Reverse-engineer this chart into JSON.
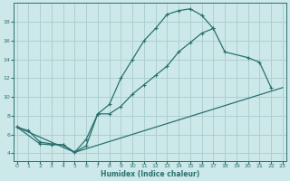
{
  "xlabel": "Humidex (Indice chaleur)",
  "bg_color": "#cde8e8",
  "grid_color": "#a8cccc",
  "line_color": "#2a7070",
  "xlim": [
    -0.3,
    23.3
  ],
  "ylim": [
    3.2,
    20.0
  ],
  "xticks": [
    0,
    1,
    2,
    3,
    4,
    5,
    6,
    7,
    8,
    9,
    10,
    11,
    12,
    13,
    14,
    15,
    16,
    17,
    18,
    19,
    20,
    21,
    22,
    23
  ],
  "yticks": [
    4,
    6,
    8,
    10,
    12,
    14,
    16,
    18
  ],
  "line1_x": [
    0,
    1,
    2,
    3,
    4,
    5,
    6,
    7,
    8,
    9,
    10,
    11,
    12,
    13,
    14,
    15,
    16,
    17,
    18,
    20,
    21,
    22
  ],
  "line1_y": [
    6.8,
    6.4,
    5.2,
    5.0,
    4.9,
    4.1,
    4.8,
    8.2,
    9.2,
    12.0,
    14.0,
    16.0,
    17.3,
    18.8,
    19.2,
    19.4,
    18.7,
    17.3,
    14.8,
    14.2,
    13.7,
    11.0
  ],
  "line2_x": [
    0,
    2,
    3,
    4,
    5,
    6,
    7,
    8,
    9,
    10,
    11,
    12,
    13,
    14,
    15,
    16,
    17
  ],
  "line2_y": [
    6.8,
    5.0,
    4.9,
    4.9,
    4.1,
    5.5,
    8.2,
    8.2,
    9.0,
    10.3,
    11.3,
    12.3,
    13.3,
    14.8,
    15.8,
    16.8,
    17.3
  ],
  "line3_x": [
    0,
    5,
    23
  ],
  "line3_y": [
    6.8,
    4.1,
    11.0
  ]
}
